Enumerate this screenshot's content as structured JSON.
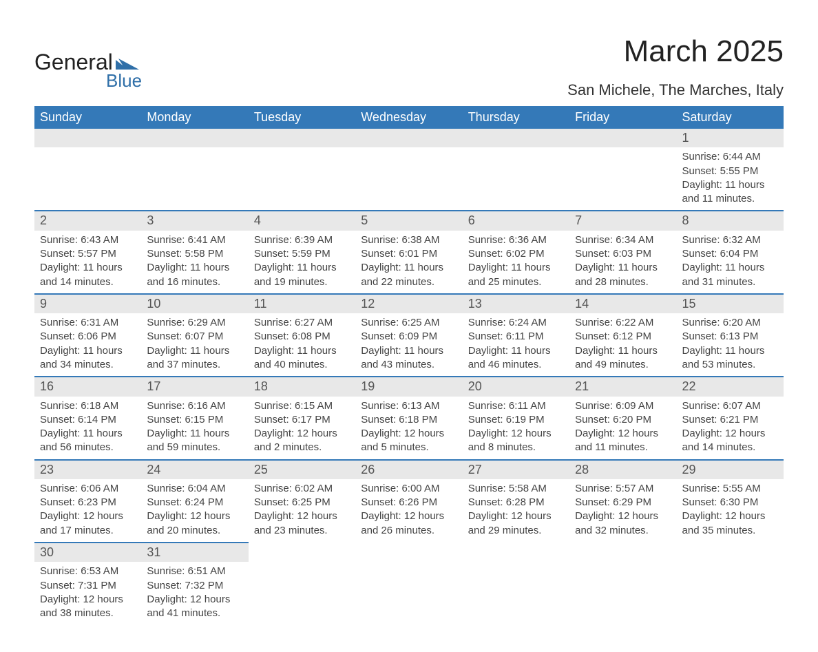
{
  "logo": {
    "text1": "General",
    "text2": "Blue"
  },
  "title": "March 2025",
  "location": "San Michele, The Marches, Italy",
  "colors": {
    "header_blue": "#3479b8",
    "row_separator": "#3479b8",
    "day_bar_bg": "#e8e8e8",
    "text": "#333333",
    "background": "#ffffff"
  },
  "layout": {
    "columns": 7,
    "rows": 6,
    "first_day_index": 6,
    "days_in_month": 31
  },
  "weekdays": [
    "Sunday",
    "Monday",
    "Tuesday",
    "Wednesday",
    "Thursday",
    "Friday",
    "Saturday"
  ],
  "labels": {
    "sunrise": "Sunrise:",
    "sunset": "Sunset:",
    "daylight": "Daylight:"
  },
  "days": [
    {
      "n": 1,
      "sunrise": "6:44 AM",
      "sunset": "5:55 PM",
      "daylight": "11 hours and 11 minutes."
    },
    {
      "n": 2,
      "sunrise": "6:43 AM",
      "sunset": "5:57 PM",
      "daylight": "11 hours and 14 minutes."
    },
    {
      "n": 3,
      "sunrise": "6:41 AM",
      "sunset": "5:58 PM",
      "daylight": "11 hours and 16 minutes."
    },
    {
      "n": 4,
      "sunrise": "6:39 AM",
      "sunset": "5:59 PM",
      "daylight": "11 hours and 19 minutes."
    },
    {
      "n": 5,
      "sunrise": "6:38 AM",
      "sunset": "6:01 PM",
      "daylight": "11 hours and 22 minutes."
    },
    {
      "n": 6,
      "sunrise": "6:36 AM",
      "sunset": "6:02 PM",
      "daylight": "11 hours and 25 minutes."
    },
    {
      "n": 7,
      "sunrise": "6:34 AM",
      "sunset": "6:03 PM",
      "daylight": "11 hours and 28 minutes."
    },
    {
      "n": 8,
      "sunrise": "6:32 AM",
      "sunset": "6:04 PM",
      "daylight": "11 hours and 31 minutes."
    },
    {
      "n": 9,
      "sunrise": "6:31 AM",
      "sunset": "6:06 PM",
      "daylight": "11 hours and 34 minutes."
    },
    {
      "n": 10,
      "sunrise": "6:29 AM",
      "sunset": "6:07 PM",
      "daylight": "11 hours and 37 minutes."
    },
    {
      "n": 11,
      "sunrise": "6:27 AM",
      "sunset": "6:08 PM",
      "daylight": "11 hours and 40 minutes."
    },
    {
      "n": 12,
      "sunrise": "6:25 AM",
      "sunset": "6:09 PM",
      "daylight": "11 hours and 43 minutes."
    },
    {
      "n": 13,
      "sunrise": "6:24 AM",
      "sunset": "6:11 PM",
      "daylight": "11 hours and 46 minutes."
    },
    {
      "n": 14,
      "sunrise": "6:22 AM",
      "sunset": "6:12 PM",
      "daylight": "11 hours and 49 minutes."
    },
    {
      "n": 15,
      "sunrise": "6:20 AM",
      "sunset": "6:13 PM",
      "daylight": "11 hours and 53 minutes."
    },
    {
      "n": 16,
      "sunrise": "6:18 AM",
      "sunset": "6:14 PM",
      "daylight": "11 hours and 56 minutes."
    },
    {
      "n": 17,
      "sunrise": "6:16 AM",
      "sunset": "6:15 PM",
      "daylight": "11 hours and 59 minutes."
    },
    {
      "n": 18,
      "sunrise": "6:15 AM",
      "sunset": "6:17 PM",
      "daylight": "12 hours and 2 minutes."
    },
    {
      "n": 19,
      "sunrise": "6:13 AM",
      "sunset": "6:18 PM",
      "daylight": "12 hours and 5 minutes."
    },
    {
      "n": 20,
      "sunrise": "6:11 AM",
      "sunset": "6:19 PM",
      "daylight": "12 hours and 8 minutes."
    },
    {
      "n": 21,
      "sunrise": "6:09 AM",
      "sunset": "6:20 PM",
      "daylight": "12 hours and 11 minutes."
    },
    {
      "n": 22,
      "sunrise": "6:07 AM",
      "sunset": "6:21 PM",
      "daylight": "12 hours and 14 minutes."
    },
    {
      "n": 23,
      "sunrise": "6:06 AM",
      "sunset": "6:23 PM",
      "daylight": "12 hours and 17 minutes."
    },
    {
      "n": 24,
      "sunrise": "6:04 AM",
      "sunset": "6:24 PM",
      "daylight": "12 hours and 20 minutes."
    },
    {
      "n": 25,
      "sunrise": "6:02 AM",
      "sunset": "6:25 PM",
      "daylight": "12 hours and 23 minutes."
    },
    {
      "n": 26,
      "sunrise": "6:00 AM",
      "sunset": "6:26 PM",
      "daylight": "12 hours and 26 minutes."
    },
    {
      "n": 27,
      "sunrise": "5:58 AM",
      "sunset": "6:28 PM",
      "daylight": "12 hours and 29 minutes."
    },
    {
      "n": 28,
      "sunrise": "5:57 AM",
      "sunset": "6:29 PM",
      "daylight": "12 hours and 32 minutes."
    },
    {
      "n": 29,
      "sunrise": "5:55 AM",
      "sunset": "6:30 PM",
      "daylight": "12 hours and 35 minutes."
    },
    {
      "n": 30,
      "sunrise": "6:53 AM",
      "sunset": "7:31 PM",
      "daylight": "12 hours and 38 minutes."
    },
    {
      "n": 31,
      "sunrise": "6:51 AM",
      "sunset": "7:32 PM",
      "daylight": "12 hours and 41 minutes."
    }
  ]
}
